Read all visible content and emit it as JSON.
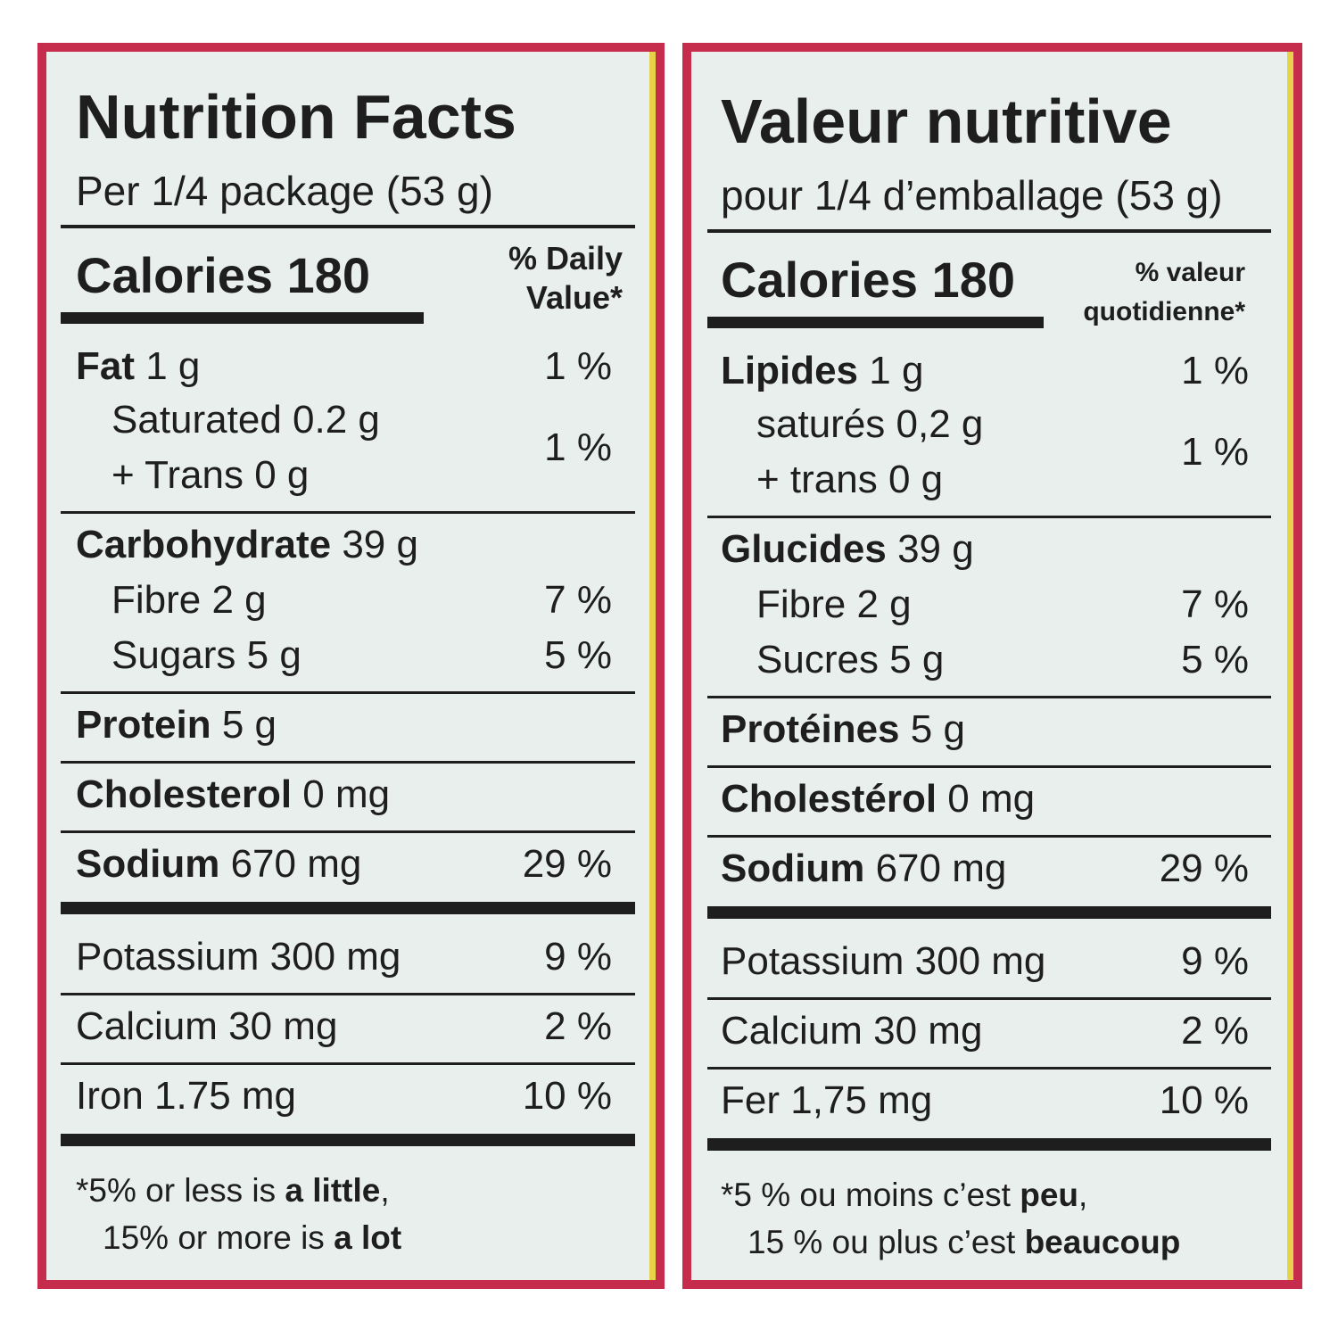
{
  "panels": [
    {
      "title": "Nutrition Facts",
      "serving": "Per 1/4 package (53 g)",
      "calories": "Calories 180",
      "dv_header": [
        "% Daily",
        "Value*"
      ],
      "nutrients": [
        {
          "bold": "Fat",
          "text": "1 g",
          "dv": "1 %",
          "sub": [
            {
              "lines": [
                "Saturated 0.2 g",
                "+ Trans 0 g"
              ],
              "dv": "1 %"
            }
          ]
        },
        {
          "bold": "Carbohydrate",
          "text": "39 g",
          "sub": [
            {
              "text": "Fibre 2 g",
              "dv": "7 %"
            },
            {
              "text": "Sugars 5 g",
              "dv": "5 %"
            }
          ]
        },
        {
          "bold": "Protein",
          "text": "5 g"
        },
        {
          "bold": "Cholesterol",
          "text": "0 mg"
        },
        {
          "bold": "Sodium",
          "text": "670 mg",
          "dv": "29 %"
        }
      ],
      "minerals": [
        {
          "text": "Potassium 300 mg",
          "dv": "9 %"
        },
        {
          "text": "Calcium 30 mg",
          "dv": "2 %"
        },
        {
          "text": "Iron 1.75 mg",
          "dv": "10 %"
        }
      ],
      "footnote": [
        [
          {
            "text": "*5% or less is ",
            "bold": false
          },
          {
            "text": "a little",
            "bold": true
          },
          {
            "text": ",",
            "bold": false
          }
        ],
        [
          {
            "text": "15% or more is ",
            "bold": false
          },
          {
            "text": "a lot",
            "bold": true
          }
        ]
      ]
    },
    {
      "title": "Valeur nutritive",
      "serving": "pour 1/4 d’emballage (53 g)",
      "calories": "Calories 180",
      "dv_header": [
        "% valeur",
        "quotidienne*"
      ],
      "nutrients": [
        {
          "bold": "Lipides",
          "text": "1 g",
          "dv": "1 %",
          "sub": [
            {
              "lines": [
                "saturés 0,2 g",
                "+ trans 0 g"
              ],
              "dv": "1 %"
            }
          ]
        },
        {
          "bold": "Glucides",
          "text": "39 g",
          "sub": [
            {
              "text": "Fibre 2 g",
              "dv": "7 %"
            },
            {
              "text": "Sucres 5 g",
              "dv": "5 %"
            }
          ]
        },
        {
          "bold": "Protéines",
          "text": "5 g"
        },
        {
          "bold": "Cholestérol",
          "text": "0 mg"
        },
        {
          "bold": "Sodium",
          "text": "670 mg",
          "dv": "29 %"
        }
      ],
      "minerals": [
        {
          "text": "Potassium 300 mg",
          "dv": "9 %"
        },
        {
          "text": "Calcium 30 mg",
          "dv": "2 %"
        },
        {
          "text": "Fer 1,75 mg",
          "dv": "10 %"
        }
      ],
      "footnote": [
        [
          {
            "text": "*5 % ou moins c’est ",
            "bold": false
          },
          {
            "text": "peu",
            "bold": true
          },
          {
            "text": ",",
            "bold": false
          }
        ],
        [
          {
            "text": "15 % ou plus c’est ",
            "bold": false
          },
          {
            "text": "beaucoup",
            "bold": true
          }
        ]
      ]
    }
  ]
}
